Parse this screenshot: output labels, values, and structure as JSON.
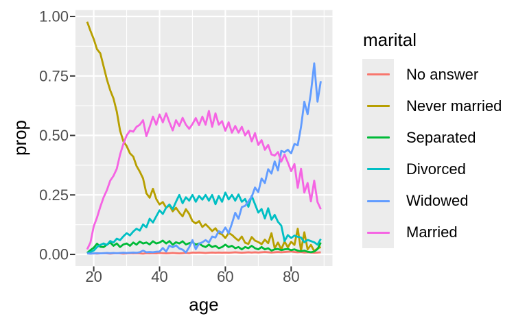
{
  "figure": {
    "background": "#FFFFFF"
  },
  "chart_data": {
    "type": "line",
    "title": "",
    "xlabel": "age",
    "ylabel": "prop",
    "legend_title": "marital",
    "legend_position": "right",
    "panel_bg": "#EBEBEB",
    "grid_color": "#FFFFFF",
    "axis_text_color": "#4D4D4D",
    "tick_color": "#333333",
    "xlim": [
      14.45,
      92.55
    ],
    "ylim": [
      -0.0489,
      1.0269
    ],
    "xticks": [
      20,
      40,
      60,
      80
    ],
    "xtick_labels": [
      "20",
      "40",
      "60",
      "80"
    ],
    "yticks": [
      0,
      0.25,
      0.5,
      0.75,
      1
    ],
    "ytick_labels": [
      "0.00",
      "0.25",
      "0.50",
      "0.75",
      "1.00"
    ],
    "minor_xticks": [
      30,
      50,
      70,
      90
    ],
    "minor_yticks": [
      0.125,
      0.375,
      0.625,
      0.875
    ],
    "x": [
      18,
      19,
      20,
      21,
      22,
      23,
      24,
      25,
      26,
      27,
      28,
      29,
      30,
      31,
      32,
      33,
      34,
      35,
      36,
      37,
      38,
      39,
      40,
      41,
      42,
      43,
      44,
      45,
      46,
      47,
      48,
      49,
      50,
      51,
      52,
      53,
      54,
      55,
      56,
      57,
      58,
      59,
      60,
      61,
      62,
      63,
      64,
      65,
      66,
      67,
      68,
      69,
      70,
      71,
      72,
      73,
      74,
      75,
      76,
      77,
      78,
      79,
      80,
      81,
      82,
      83,
      84,
      85,
      86,
      87,
      88,
      89
    ],
    "series": [
      {
        "name": "No answer",
        "color": "#F8766D",
        "values": [
          0.004,
          0.003,
          0.004,
          0.003,
          0.004,
          0.005,
          0.004,
          0.003,
          0.004,
          0.005,
          0.004,
          0.003,
          0.004,
          0.005,
          0.004,
          0.005,
          0.004,
          0.003,
          0.005,
          0.004,
          0.005,
          0.004,
          0.006,
          0.005,
          0.004,
          0.005,
          0.006,
          0.005,
          0.004,
          0.005,
          0.006,
          0.005,
          0.008,
          0.007,
          0.008,
          0.007,
          0.006,
          0.007,
          0.008,
          0.007,
          0.008,
          0.007,
          0.008,
          0.007,
          0.008,
          0.009,
          0.008,
          0.007,
          0.008,
          0.009,
          0.008,
          0.009,
          0.008,
          0.009,
          0.01,
          0.009,
          0.008,
          0.009,
          0.01,
          0.009,
          0.01,
          0.011,
          0.012,
          0.01,
          0.009,
          0.01,
          0.008,
          0.009,
          0.008,
          0.007,
          0.008,
          0.009
        ]
      },
      {
        "name": "Never married",
        "color": "#B79F00",
        "values": [
          0.978,
          0.94,
          0.905,
          0.862,
          0.845,
          0.79,
          0.735,
          0.69,
          0.655,
          0.6,
          0.52,
          0.475,
          0.455,
          0.425,
          0.411,
          0.372,
          0.348,
          0.319,
          0.257,
          0.238,
          0.276,
          0.233,
          0.21,
          0.22,
          0.196,
          0.206,
          0.181,
          0.196,
          0.176,
          0.16,
          0.19,
          0.17,
          0.14,
          0.13,
          0.14,
          0.115,
          0.127,
          0.113,
          0.098,
          0.11,
          0.09,
          0.084,
          0.069,
          0.09,
          0.082,
          0.069,
          0.058,
          0.075,
          0.049,
          0.044,
          0.073,
          0.058,
          0.052,
          0.043,
          0.062,
          0.047,
          0.089,
          0.026,
          0.05,
          0.021,
          0.054,
          0.03,
          0.053,
          0.04,
          0.108,
          0.016,
          0.093,
          0.021,
          0.04,
          0.014,
          0.025,
          0.031
        ]
      },
      {
        "name": "Separated",
        "color": "#00BA38",
        "values": [
          0.006,
          0.018,
          0.028,
          0.045,
          0.032,
          0.031,
          0.041,
          0.05,
          0.036,
          0.046,
          0.031,
          0.042,
          0.046,
          0.036,
          0.05,
          0.041,
          0.054,
          0.046,
          0.05,
          0.042,
          0.055,
          0.046,
          0.05,
          0.058,
          0.046,
          0.056,
          0.041,
          0.051,
          0.046,
          0.055,
          0.042,
          0.047,
          0.051,
          0.041,
          0.046,
          0.036,
          0.031,
          0.041,
          0.031,
          0.036,
          0.026,
          0.031,
          0.041,
          0.031,
          0.036,
          0.026,
          0.031,
          0.021,
          0.031,
          0.026,
          0.036,
          0.026,
          0.021,
          0.031,
          0.021,
          0.026,
          0.016,
          0.021,
          0.023,
          0.018,
          0.021,
          0.023,
          0.018,
          0.021,
          0.016,
          0.013,
          0.016,
          0.011,
          0.009,
          0.012,
          0.022,
          0.05
        ]
      },
      {
        "name": "Divorced",
        "color": "#00BFC4",
        "values": [
          0.004,
          0.01,
          0.016,
          0.031,
          0.04,
          0.046,
          0.04,
          0.056,
          0.05,
          0.066,
          0.06,
          0.076,
          0.089,
          0.08,
          0.096,
          0.108,
          0.1,
          0.126,
          0.114,
          0.15,
          0.134,
          0.16,
          0.185,
          0.17,
          0.196,
          0.21,
          0.19,
          0.221,
          0.25,
          0.215,
          0.24,
          0.226,
          0.25,
          0.221,
          0.246,
          0.23,
          0.25,
          0.226,
          0.25,
          0.211,
          0.246,
          0.221,
          0.26,
          0.231,
          0.25,
          0.226,
          0.252,
          0.221,
          0.233,
          0.2,
          0.246,
          0.211,
          0.176,
          0.191,
          0.151,
          0.194,
          0.146,
          0.166,
          0.137,
          0.121,
          0.056,
          0.081,
          0.069,
          0.079,
          0.074,
          0.071,
          0.051,
          0.061,
          0.056,
          0.051,
          0.041,
          0.065
        ]
      },
      {
        "name": "Widowed",
        "color": "#619CFF",
        "values": [
          0.004,
          0.003,
          0.004,
          0.005,
          0.004,
          0.005,
          0.006,
          0.005,
          0.006,
          0.005,
          0.006,
          0.007,
          0.006,
          0.007,
          0.008,
          0.007,
          0.009,
          0.016,
          0.009,
          0.01,
          0.009,
          0.011,
          0.012,
          0.027,
          0.012,
          0.037,
          0.03,
          0.038,
          0.025,
          0.02,
          0.008,
          0.03,
          0.06,
          0.022,
          0.045,
          0.051,
          0.06,
          0.05,
          0.075,
          0.071,
          0.098,
          0.09,
          0.113,
          0.089,
          0.13,
          0.175,
          0.15,
          0.199,
          0.204,
          0.223,
          0.242,
          0.281,
          0.262,
          0.319,
          0.3,
          0.358,
          0.34,
          0.391,
          0.353,
          0.435,
          0.43,
          0.44,
          0.425,
          0.464,
          0.459,
          0.536,
          0.642,
          0.589,
          0.68,
          0.803,
          0.642,
          0.728
        ]
      },
      {
        "name": "Married",
        "color": "#F564E3",
        "values": [
          0.021,
          0.05,
          0.118,
          0.155,
          0.2,
          0.24,
          0.27,
          0.31,
          0.33,
          0.36,
          0.42,
          0.465,
          0.5,
          0.52,
          0.516,
          0.536,
          0.545,
          0.564,
          0.497,
          0.536,
          0.579,
          0.545,
          0.588,
          0.555,
          0.593,
          0.555,
          0.521,
          0.564,
          0.54,
          0.574,
          0.545,
          0.528,
          0.548,
          0.573,
          0.543,
          0.579,
          0.545,
          0.603,
          0.536,
          0.593,
          0.545,
          0.56,
          0.52,
          0.555,
          0.512,
          0.54,
          0.512,
          0.536,
          0.5,
          0.52,
          0.475,
          0.51,
          0.46,
          0.48,
          0.44,
          0.46,
          0.42,
          0.415,
          0.43,
          0.39,
          0.42,
          0.386,
          0.35,
          0.38,
          0.28,
          0.36,
          0.26,
          0.3,
          0.223,
          0.31,
          0.22,
          0.19
        ]
      }
    ]
  }
}
